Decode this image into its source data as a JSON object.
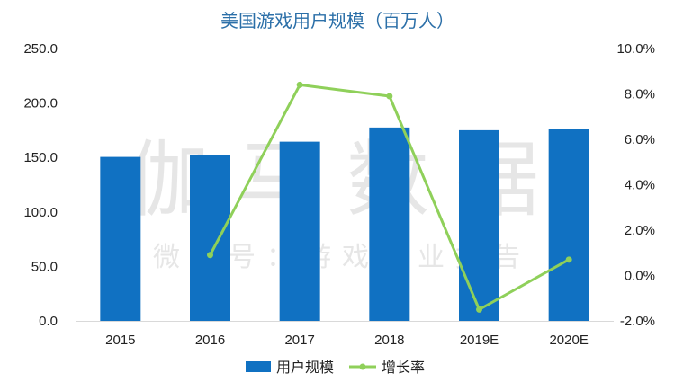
{
  "watermark": {
    "main": "伽马数据",
    "sub": "微信号：游戏产业报告"
  },
  "colors": {
    "bar": "#1071c2",
    "line": "#8fd05a",
    "title": "#2b6fa8",
    "grid": "#d9d9d9"
  },
  "chart_data": {
    "type": "bar",
    "title": "美国游戏用户规模（百万人）",
    "categories": [
      "2015",
      "2016",
      "2017",
      "2018",
      "2019E",
      "2020E"
    ],
    "series": [
      {
        "name": "用户规模",
        "type": "bar",
        "axis": "left",
        "values": [
          150.5,
          152.0,
          164.5,
          177.5,
          175.0,
          176.5
        ]
      },
      {
        "name": "增长率",
        "type": "line",
        "axis": "right",
        "values": [
          null,
          0.9,
          8.4,
          7.9,
          -1.5,
          0.7
        ]
      }
    ],
    "y_left": {
      "min": 0,
      "max": 250,
      "step": 50,
      "tick_labels": [
        "0.0",
        "50.0",
        "100.0",
        "150.0",
        "200.0",
        "250.0"
      ]
    },
    "y_right": {
      "min": -2,
      "max": 10,
      "step": 2,
      "tick_labels": [
        "-2.0%",
        "0.0%",
        "2.0%",
        "4.0%",
        "6.0%",
        "8.0%",
        "10.0%"
      ]
    },
    "grid": false,
    "legend_position": "bottom"
  }
}
